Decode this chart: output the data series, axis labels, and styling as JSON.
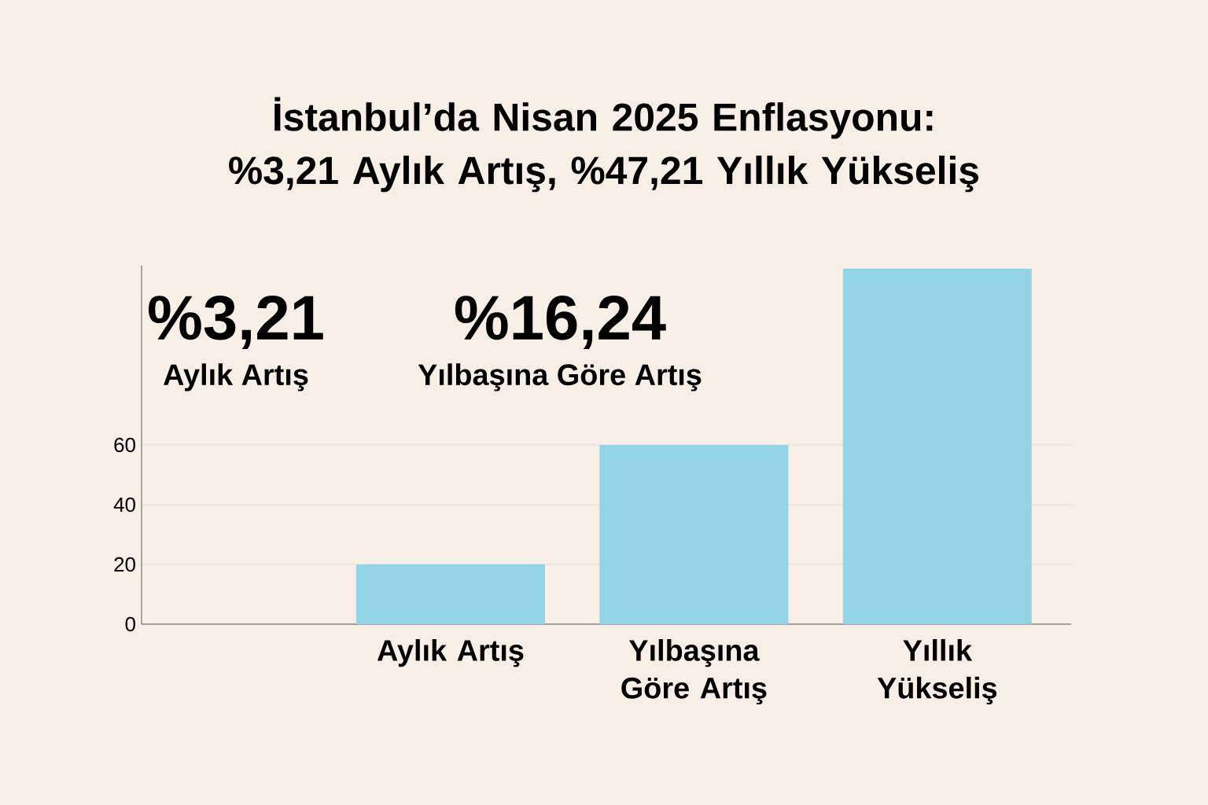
{
  "chart_data": {
    "type": "bar",
    "title": "İstanbul’da Nisan 2025 Enflasyonu: %3,21 Aylık Artış, %47,21 Yıllık Yükseliş",
    "annotations": [
      "%3,21",
      "Aylık Artış",
      "%16,24",
      "Yılbaşına Göre Artış"
    ],
    "categories": [
      "Aylık Artış",
      "Yılbaşına Göre Artış",
      "Yıllık Yükseliş"
    ],
    "values": [
      20,
      60,
      119
    ],
    "color": "#93d3e6",
    "ylim": [
      0,
      120
    ],
    "yticks": [
      0,
      20,
      40,
      60
    ],
    "grid": "y"
  }
}
